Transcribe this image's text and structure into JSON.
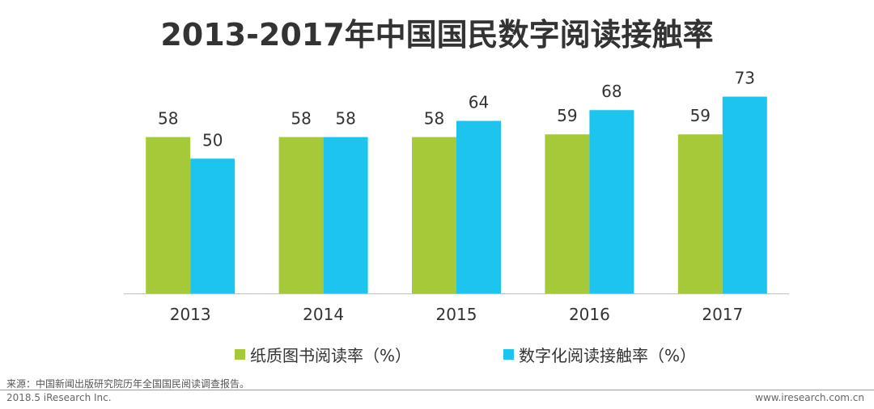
{
  "chart_data": {
    "type": "bar",
    "title": "2013-2017年中国国民数字阅读接触率",
    "categories": [
      "2013",
      "2014",
      "2015",
      "2016",
      "2017"
    ],
    "series": [
      {
        "name": "纸质图书阅读率（%）",
        "values": [
          58,
          58,
          58,
          59,
          59
        ],
        "color": "#a5c939"
      },
      {
        "name": "数字化阅读接触率（%）",
        "values": [
          50,
          58,
          64,
          68,
          73
        ],
        "color": "#1cc4ee"
      }
    ],
    "xlabel": "",
    "ylabel": "",
    "ylim": [
      0,
      78
    ],
    "grid": false,
    "legend": "bottom"
  },
  "footer": {
    "source": "来源：中国新闻出版研究院历年全国国民阅读调查报告。",
    "copyright": "2018.5 iResearch Inc.",
    "website": "www.iresearch.com.cn"
  }
}
